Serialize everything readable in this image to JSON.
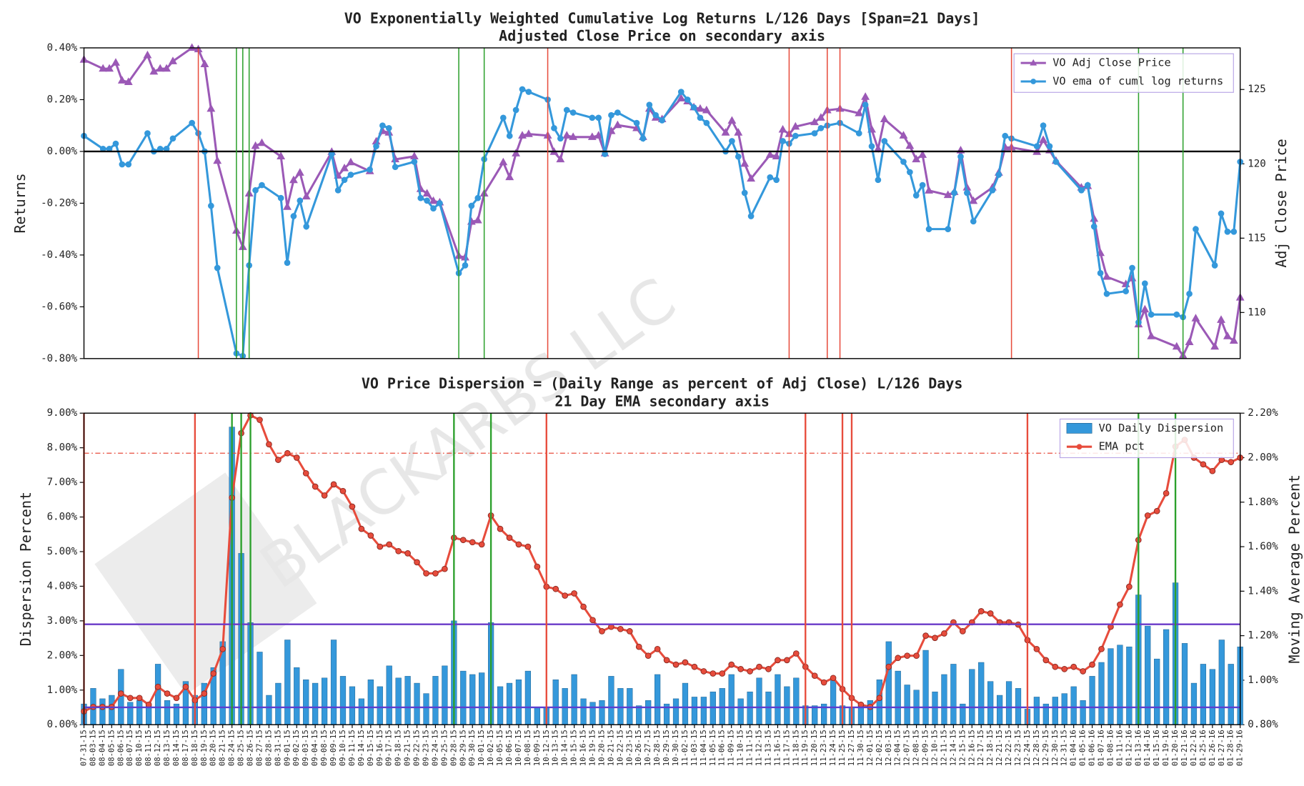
{
  "watermark": "BLACKARBS LLC",
  "chart_data": [
    {
      "type": "line",
      "xscale": "date",
      "title": "VO Exponentially Weighted Cumulative Log Returns L/126 Days [Span=21 Days]",
      "subtitle": "Adjusted Close Price on secondary axis",
      "ylabel": "Returns",
      "y2label": "Adj Close Price",
      "categories": [
        "07-31-15",
        "08-03-15",
        "08-04-15",
        "08-05-15",
        "08-06-15",
        "08-07-15",
        "08-10-15",
        "08-11-15",
        "08-12-15",
        "08-13-15",
        "08-14-15",
        "08-17-15",
        "08-18-15",
        "08-19-15",
        "08-20-15",
        "08-21-15",
        "08-24-15",
        "08-25-15",
        "08-26-15",
        "08-27-15",
        "08-28-15",
        "08-31-15",
        "09-01-15",
        "09-02-15",
        "09-03-15",
        "09-04-15",
        "09-08-15",
        "09-09-15",
        "09-10-15",
        "09-11-15",
        "09-14-15",
        "09-15-15",
        "09-16-15",
        "09-17-15",
        "09-18-15",
        "09-21-15",
        "09-22-15",
        "09-23-15",
        "09-24-15",
        "09-25-15",
        "09-28-15",
        "09-29-15",
        "09-30-15",
        "10-01-15",
        "10-02-15",
        "10-05-15",
        "10-06-15",
        "10-07-15",
        "10-08-15",
        "10-09-15",
        "10-12-15",
        "10-13-15",
        "10-14-15",
        "10-15-15",
        "10-16-15",
        "10-19-15",
        "10-20-15",
        "10-21-15",
        "10-22-15",
        "10-23-15",
        "10-26-15",
        "10-27-15",
        "10-28-15",
        "10-29-15",
        "10-30-15",
        "11-02-15",
        "11-03-15",
        "11-04-15",
        "11-05-15",
        "11-06-15",
        "11-09-15",
        "11-10-15",
        "11-11-15",
        "11-12-15",
        "11-13-15",
        "11-16-15",
        "11-17-15",
        "11-18-15",
        "11-19-15",
        "11-20-15",
        "11-23-15",
        "11-24-15",
        "11-25-15",
        "11-27-15",
        "11-30-15",
        "12-01-15",
        "12-02-15",
        "12-03-15",
        "12-04-15",
        "12-07-15",
        "12-08-15",
        "12-09-15",
        "12-10-15",
        "12-11-15",
        "12-14-15",
        "12-15-15",
        "12-16-15",
        "12-17-15",
        "12-18-15",
        "12-21-15",
        "12-22-15",
        "12-23-15",
        "12-24-15",
        "12-28-15",
        "12-29-15",
        "12-30-15",
        "12-31-15",
        "01-04-16",
        "01-05-16",
        "01-06-16",
        "01-07-16",
        "01-08-16",
        "01-11-16",
        "01-12-16",
        "01-13-16",
        "01-14-16",
        "01-15-16",
        "01-19-16",
        "01-20-16",
        "01-21-16",
        "01-22-16",
        "01-25-16",
        "01-26-16",
        "01-27-16",
        "01-28-16",
        "01-29-16"
      ],
      "series": [
        {
          "name": "VO Adj Close Price",
          "color": "#9b59b6",
          "marker": "triangle",
          "axis": "y2",
          "values": [
            127.0,
            126.4,
            126.4,
            126.8,
            125.6,
            125.5,
            127.3,
            126.2,
            126.4,
            126.4,
            126.9,
            127.8,
            127.7,
            126.7,
            123.7,
            120.2,
            115.5,
            114.4,
            118.0,
            121.2,
            121.4,
            120.5,
            117.1,
            118.9,
            119.4,
            117.8,
            120.8,
            119.2,
            119.7,
            120.1,
            119.5,
            121.5,
            122.2,
            122.1,
            120.3,
            120.5,
            118.3,
            118.0,
            117.5,
            117.4,
            113.8,
            113.7,
            116.1,
            116.2,
            118.0,
            120.1,
            119.1,
            120.7,
            121.9,
            122.0,
            121.9,
            120.8,
            120.3,
            121.9,
            121.8,
            121.8,
            121.9,
            120.7,
            122.2,
            122.6,
            122.4,
            121.8,
            123.7,
            123.1,
            123.0,
            124.4,
            124.2,
            123.8,
            123.7,
            123.6,
            122.1,
            122.9,
            122.1,
            120.0,
            119.0,
            120.6,
            120.5,
            122.3,
            122.0,
            122.5,
            122.8,
            123.1,
            123.6,
            123.7,
            123.4,
            124.5,
            122.3,
            121.0,
            123.0,
            121.9,
            121.2,
            120.3,
            120.6,
            118.2,
            117.9,
            118.1,
            120.9,
            118.4,
            117.5,
            118.4,
            119.4,
            121.1,
            121.1,
            120.8,
            121.6,
            120.9,
            120.2,
            118.4,
            118.5,
            116.3,
            114.0,
            112.4,
            111.9,
            112.3,
            109.2,
            110.2,
            108.4,
            107.7,
            107.1,
            108.0,
            109.6,
            107.7,
            109.5,
            108.4,
            108.1,
            111.0
          ]
        },
        {
          "name": "VO ema of cuml log returns",
          "color": "#3498db",
          "marker": "circle",
          "values": [
            0.06,
            0.01,
            0.01,
            0.03,
            -0.05,
            -0.05,
            0.07,
            0.0,
            0.01,
            0.01,
            0.05,
            0.11,
            0.07,
            0.0,
            -0.21,
            -0.45,
            -0.78,
            -0.79,
            -0.44,
            -0.15,
            -0.13,
            -0.18,
            -0.43,
            -0.25,
            -0.19,
            -0.29,
            -0.01,
            -0.15,
            -0.11,
            -0.09,
            -0.07,
            0.02,
            0.1,
            0.09,
            -0.06,
            -0.04,
            -0.18,
            -0.19,
            -0.22,
            -0.2,
            -0.47,
            -0.44,
            -0.21,
            -0.18,
            -0.03,
            0.13,
            0.06,
            0.16,
            0.24,
            0.23,
            0.2,
            0.09,
            0.05,
            0.16,
            0.15,
            0.13,
            0.13,
            -0.01,
            0.14,
            0.15,
            0.11,
            0.05,
            0.18,
            0.14,
            0.12,
            0.23,
            0.2,
            0.17,
            0.13,
            0.11,
            0.0,
            0.04,
            -0.02,
            -0.16,
            -0.25,
            -0.1,
            -0.11,
            0.04,
            0.03,
            0.06,
            0.07,
            0.09,
            0.1,
            0.11,
            0.07,
            0.18,
            0.02,
            -0.11,
            0.04,
            -0.04,
            -0.08,
            -0.17,
            -0.13,
            -0.3,
            -0.3,
            -0.16,
            -0.02,
            -0.16,
            -0.27,
            -0.15,
            -0.09,
            0.06,
            0.05,
            0.02,
            0.1,
            0.02,
            -0.04,
            -0.15,
            -0.13,
            -0.29,
            -0.47,
            -0.55,
            -0.54,
            -0.45,
            -0.66,
            -0.51,
            -0.63,
            -0.63,
            -0.64,
            -0.55,
            -0.3,
            -0.44,
            -0.24,
            -0.31,
            -0.31,
            -0.04
          ]
        }
      ],
      "ylim": [
        -0.8,
        0.4
      ],
      "yticks": [
        {
          "value": -0.8,
          "label": "-0.80%"
        },
        {
          "value": -0.6,
          "label": "-0.60%"
        },
        {
          "value": -0.4,
          "label": "-0.40%"
        },
        {
          "value": -0.2,
          "label": "-0.20%"
        },
        {
          "value": 0,
          "label": "0.00%"
        },
        {
          "value": 0.2,
          "label": "0.20%"
        },
        {
          "value": 0.4,
          "label": "0.40%"
        }
      ],
      "y2lim": [
        106.9,
        127.8
      ],
      "y2ticks": [
        110,
        115,
        120,
        125
      ],
      "hlines": [
        {
          "value": 0,
          "color": "#000000"
        }
      ],
      "vlines": [
        {
          "color": "#e74c3c",
          "at": [
            "08-18-15",
            "10-12-15",
            "11-19-15",
            "11-25-15",
            "11-27-15",
            "12-24-15"
          ]
        },
        {
          "color": "#2ca02c",
          "at": [
            "08-24-15",
            "08-25-15",
            "08-26-15",
            "09-28-15",
            "10-02-15",
            "01-13-16",
            "01-20-16"
          ]
        }
      ],
      "legend": "upper right"
    },
    {
      "type": "bar",
      "xscale": "category",
      "xlabels": true,
      "title": "VO Price Dispersion = (Daily Range as percent of Adj Close) L/126 Days",
      "subtitle": "21 Day EMA secondary axis",
      "ylabel": "Dispersion Percent",
      "y2label": "Moving Average Percent",
      "categories": [
        "07-31-15",
        "08-03-15",
        "08-04-15",
        "08-05-15",
        "08-06-15",
        "08-07-15",
        "08-10-15",
        "08-11-15",
        "08-12-15",
        "08-13-15",
        "08-14-15",
        "08-17-15",
        "08-18-15",
        "08-19-15",
        "08-20-15",
        "08-21-15",
        "08-24-15",
        "08-25-15",
        "08-26-15",
        "08-27-15",
        "08-28-15",
        "08-31-15",
        "09-01-15",
        "09-02-15",
        "09-03-15",
        "09-04-15",
        "09-08-15",
        "09-09-15",
        "09-10-15",
        "09-11-15",
        "09-14-15",
        "09-15-15",
        "09-16-15",
        "09-17-15",
        "09-18-15",
        "09-21-15",
        "09-22-15",
        "09-23-15",
        "09-24-15",
        "09-25-15",
        "09-28-15",
        "09-29-15",
        "09-30-15",
        "10-01-15",
        "10-02-15",
        "10-05-15",
        "10-06-15",
        "10-07-15",
        "10-08-15",
        "10-09-15",
        "10-12-15",
        "10-13-15",
        "10-14-15",
        "10-15-15",
        "10-16-15",
        "10-19-15",
        "10-20-15",
        "10-21-15",
        "10-22-15",
        "10-23-15",
        "10-26-15",
        "10-27-15",
        "10-28-15",
        "10-29-15",
        "10-30-15",
        "11-02-15",
        "11-03-15",
        "11-04-15",
        "11-05-15",
        "11-06-15",
        "11-09-15",
        "11-10-15",
        "11-11-15",
        "11-12-15",
        "11-13-15",
        "11-16-15",
        "11-17-15",
        "11-18-15",
        "11-19-15",
        "11-20-15",
        "11-23-15",
        "11-24-15",
        "11-25-15",
        "11-27-15",
        "11-30-15",
        "12-01-15",
        "12-02-15",
        "12-03-15",
        "12-04-15",
        "12-07-15",
        "12-08-15",
        "12-09-15",
        "12-10-15",
        "12-11-15",
        "12-14-15",
        "12-15-15",
        "12-16-15",
        "12-17-15",
        "12-18-15",
        "12-21-15",
        "12-22-15",
        "12-23-15",
        "12-24-15",
        "12-28-15",
        "12-29-15",
        "12-30-15",
        "12-31-15",
        "01-04-16",
        "01-05-16",
        "01-06-16",
        "01-07-16",
        "01-08-16",
        "01-11-16",
        "01-12-16",
        "01-13-16",
        "01-14-16",
        "01-15-16",
        "01-19-16",
        "01-20-16",
        "01-21-16",
        "01-22-16",
        "01-25-16",
        "01-26-16",
        "01-27-16",
        "01-28-16",
        "01-29-16"
      ],
      "series": [
        {
          "name": "VO Daily Dispersion",
          "color": "#3498db",
          "type": "bar",
          "values": [
            0.6,
            1.05,
            0.75,
            0.85,
            1.6,
            0.65,
            0.7,
            0.55,
            1.75,
            0.7,
            0.6,
            1.25,
            0.85,
            1.2,
            1.65,
            2.4,
            8.6,
            4.95,
            2.95,
            2.1,
            0.85,
            1.2,
            2.45,
            1.65,
            1.3,
            1.2,
            1.35,
            2.45,
            1.4,
            1.1,
            0.75,
            1.3,
            1.1,
            1.7,
            1.35,
            1.4,
            1.2,
            0.9,
            1.4,
            1.7,
            3.0,
            1.55,
            1.45,
            1.5,
            2.95,
            1.1,
            1.2,
            1.3,
            1.55,
            0.5,
            0.5,
            1.3,
            1.05,
            1.45,
            0.75,
            0.65,
            0.7,
            1.4,
            1.05,
            1.05,
            0.55,
            0.7,
            1.45,
            0.6,
            0.75,
            1.2,
            0.8,
            0.8,
            0.95,
            1.05,
            1.45,
            0.75,
            0.95,
            1.35,
            0.95,
            1.45,
            1.1,
            1.35,
            0.55,
            0.55,
            0.6,
            1.3,
            0.55,
            0.5,
            0.55,
            0.7,
            1.3,
            2.4,
            1.55,
            1.15,
            1.0,
            2.15,
            0.95,
            1.45,
            1.75,
            0.6,
            1.6,
            1.8,
            1.25,
            0.85,
            1.25,
            1.05,
            0.45,
            0.8,
            0.6,
            0.8,
            0.9,
            1.1,
            0.7,
            1.4,
            1.8,
            2.2,
            2.3,
            2.25,
            3.75,
            2.85,
            1.9,
            2.75,
            4.1,
            2.35,
            1.2,
            1.75,
            1.6,
            2.45,
            1.75,
            2.25
          ]
        },
        {
          "name": "EMA pct",
          "color": "#e74c3c",
          "type": "line",
          "marker": "circle",
          "axis": "y2",
          "values": [
            0.86,
            0.88,
            0.88,
            0.88,
            0.94,
            0.92,
            0.92,
            0.89,
            0.97,
            0.94,
            0.92,
            0.97,
            0.91,
            0.94,
            1.03,
            1.14,
            1.82,
            2.11,
            2.19,
            2.17,
            2.06,
            1.99,
            2.02,
            2.0,
            1.93,
            1.87,
            1.83,
            1.88,
            1.85,
            1.78,
            1.68,
            1.65,
            1.6,
            1.61,
            1.58,
            1.57,
            1.53,
            1.48,
            1.48,
            1.5,
            1.64,
            1.63,
            1.62,
            1.61,
            1.74,
            1.68,
            1.64,
            1.61,
            1.6,
            1.51,
            1.42,
            1.41,
            1.38,
            1.39,
            1.33,
            1.27,
            1.22,
            1.24,
            1.23,
            1.22,
            1.15,
            1.11,
            1.14,
            1.09,
            1.07,
            1.08,
            1.06,
            1.04,
            1.03,
            1.03,
            1.07,
            1.05,
            1.04,
            1.06,
            1.05,
            1.09,
            1.09,
            1.12,
            1.06,
            1.02,
            0.99,
            1.01,
            0.96,
            0.92,
            0.89,
            0.88,
            0.92,
            1.06,
            1.1,
            1.11,
            1.11,
            1.2,
            1.19,
            1.21,
            1.26,
            1.22,
            1.26,
            1.31,
            1.3,
            1.26,
            1.26,
            1.25,
            1.18,
            1.14,
            1.09,
            1.06,
            1.05,
            1.06,
            1.04,
            1.07,
            1.14,
            1.24,
            1.34,
            1.42,
            1.63,
            1.74,
            1.76,
            1.84,
            2.05,
            2.08,
            2.0,
            1.97,
            1.94,
            1.99,
            1.98,
            2.0
          ]
        }
      ],
      "ylim": [
        0,
        9
      ],
      "yticks": [
        {
          "value": 0,
          "label": "0.00%"
        },
        {
          "value": 1,
          "label": "1.00%"
        },
        {
          "value": 2,
          "label": "2.00%"
        },
        {
          "value": 3,
          "label": "3.00%"
        },
        {
          "value": 4,
          "label": "4.00%"
        },
        {
          "value": 5,
          "label": "5.00%"
        },
        {
          "value": 6,
          "label": "6.00%"
        },
        {
          "value": 7,
          "label": "7.00%"
        },
        {
          "value": 8,
          "label": "8.00%"
        },
        {
          "value": 9,
          "label": "9.00%"
        }
      ],
      "y2lim": [
        0.8,
        2.2
      ],
      "y2ticks": [
        {
          "value": 0.8,
          "label": "0.80%"
        },
        {
          "value": 1.0,
          "label": "1.00%"
        },
        {
          "value": 1.2,
          "label": "1.20%"
        },
        {
          "value": 1.4,
          "label": "1.40%"
        },
        {
          "value": 1.6,
          "label": "1.60%"
        },
        {
          "value": 1.8,
          "label": "1.80%"
        },
        {
          "value": 2.0,
          "label": "2.00%"
        },
        {
          "value": 2.2,
          "label": "2.20%"
        }
      ],
      "hlines": [
        {
          "value": 2.9,
          "color": "#6a3ac8"
        },
        {
          "value": 0.5,
          "color": "#5b3fd0"
        },
        {
          "value": 2.02,
          "color": "#e74c3c",
          "axis": "y2",
          "style": "dashdot"
        }
      ],
      "vlines": [
        {
          "color": "#e74c3c",
          "at": [
            "07-31-15",
            "08-18-15",
            "10-12-15",
            "11-19-15",
            "11-25-15",
            "11-27-15",
            "12-24-15"
          ]
        },
        {
          "color": "#2ca02c",
          "at": [
            "08-24-15",
            "08-25-15",
            "08-26-15",
            "09-28-15",
            "10-02-15",
            "01-13-16",
            "01-20-16"
          ]
        }
      ],
      "legend": "upper right"
    }
  ]
}
